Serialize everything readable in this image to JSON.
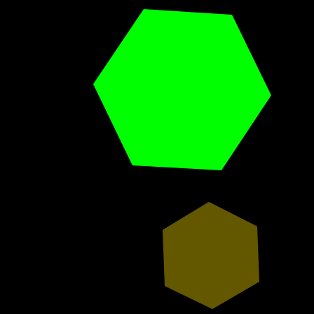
{
  "scene": {
    "background": "#000000",
    "shapes": [
      {
        "shape": "hexagon",
        "color": "#00ff00"
      },
      {
        "shape": "hexagon",
        "color": "#635700"
      }
    ]
  }
}
